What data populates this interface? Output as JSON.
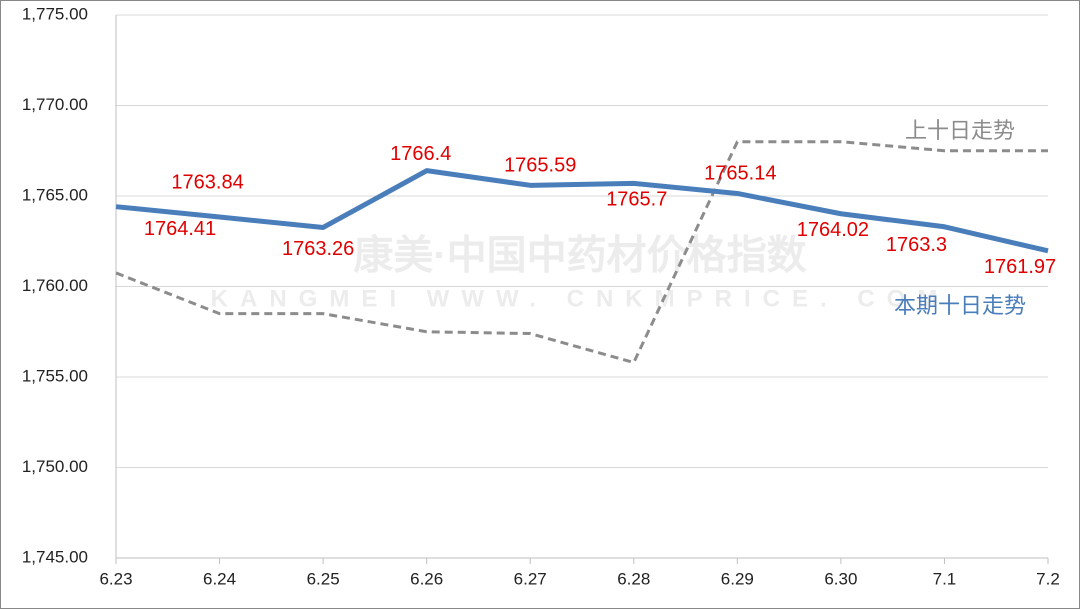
{
  "chart_data": {
    "type": "line",
    "categories": [
      "6.23",
      "6.24",
      "6.25",
      "6.26",
      "6.27",
      "6.28",
      "6.29",
      "6.30",
      "7.1",
      "7.2"
    ],
    "series": [
      {
        "name": "本期十日走势",
        "color": "#4a7ebb",
        "dashed": false,
        "show_labels": true,
        "values": [
          1764.41,
          1763.84,
          1763.26,
          1766.4,
          1765.59,
          1765.7,
          1765.14,
          1764.02,
          1763.3,
          1761.97
        ]
      },
      {
        "name": "上十日走势",
        "color": "#8c8c8c",
        "dashed": true,
        "show_labels": false,
        "values": [
          1760.75,
          1758.5,
          1758.5,
          1757.5,
          1757.4,
          1755.8,
          1768.0,
          1768.0,
          1767.5,
          1767.5
        ]
      }
    ],
    "label_color": "#e00000",
    "ylim": [
      1745,
      1775
    ],
    "yticks": [
      {
        "value": 1745,
        "label": "1,745.00"
      },
      {
        "value": 1750,
        "label": "1,750.00"
      },
      {
        "value": 1755,
        "label": "1,755.00"
      },
      {
        "value": 1760,
        "label": "1,760.00"
      },
      {
        "value": 1765,
        "label": "1,765.00"
      },
      {
        "value": 1770,
        "label": "1,770.00"
      },
      {
        "value": 1775,
        "label": "1,775.00"
      }
    ],
    "grid": true,
    "watermark": [
      "康美·中国中药材价格指数",
      "KANGMEI WWW. CNKMPRICE. COM"
    ]
  }
}
